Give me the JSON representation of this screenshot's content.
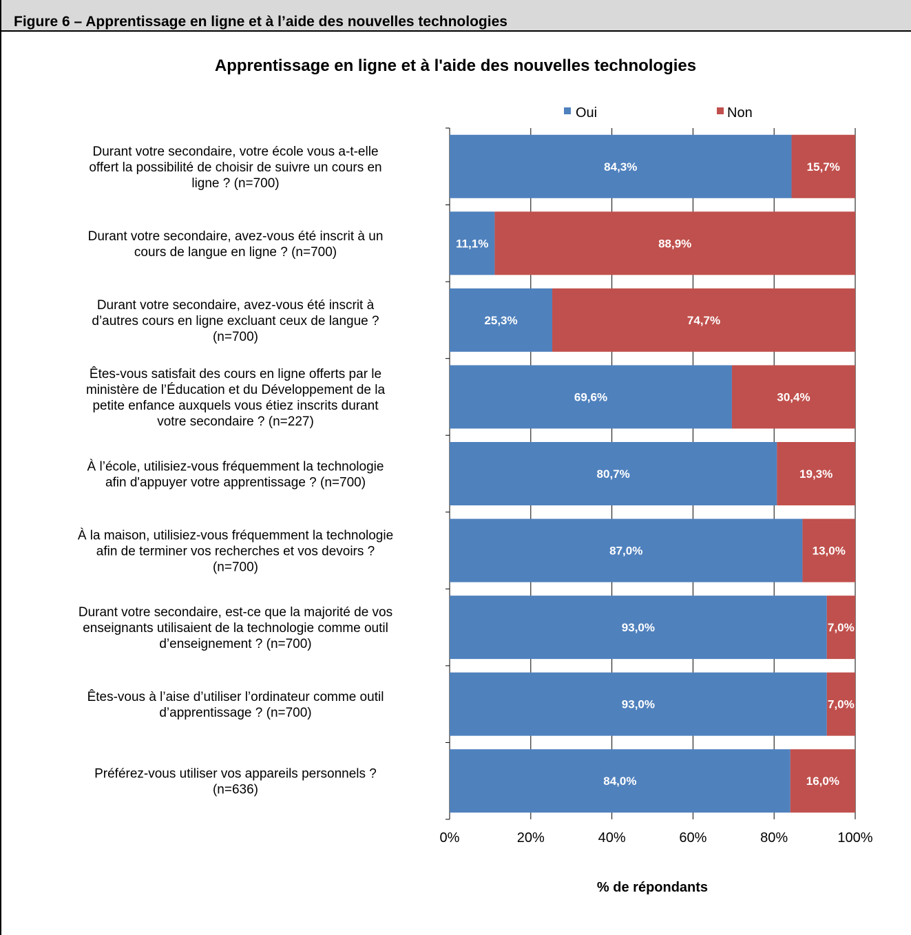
{
  "header": {
    "title": "Figure 6 – Apprentissage en ligne et à l’aide des nouvelles technologies"
  },
  "chart_data": {
    "type": "bar",
    "orientation": "horizontal",
    "stacked": true,
    "title": "Apprentissage en ligne et à l'aide des nouvelles technologies",
    "xlabel": "% de répondants",
    "ylabel": "",
    "xlim": [
      0,
      100
    ],
    "x_ticks": [
      "0%",
      "20%",
      "40%",
      "60%",
      "80%",
      "100%"
    ],
    "legend_position": "top",
    "categories": [
      [
        "Durant votre secondaire, votre école vous a-t-elle",
        "offert la possibilité de choisir de suivre un cours en",
        "ligne ? (n=700)"
      ],
      [
        "Durant votre secondaire, avez-vous été inscrit à un",
        "cours de langue en ligne ? (n=700)"
      ],
      [
        "Durant votre secondaire, avez-vous été inscrit à",
        "d’autres cours en ligne excluant ceux de langue ?",
        "(n=700)"
      ],
      [
        "Êtes-vous satisfait des cours en ligne offerts par le",
        "ministère de l’Éducation et du Développement de la",
        "petite enfance auxquels vous étiez inscrits durant",
        "votre secondaire ? (n=227)"
      ],
      [
        "À l’école, utilisiez-vous fréquemment la technologie",
        "afin d'appuyer votre apprentissage ? (n=700)"
      ],
      [
        "À la maison, utilisiez-vous fréquemment la technologie",
        "afin de terminer vos recherches et vos devoirs ?",
        "(n=700)"
      ],
      [
        "Durant votre secondaire, est-ce que la majorité de vos",
        "enseignants utilisaient de la technologie comme outil",
        "d’enseignement ? (n=700)"
      ],
      [
        "Êtes-vous à l’aise d’utiliser l’ordinateur comme outil",
        "d’apprentissage ? (n=700)"
      ],
      [
        "Préférez-vous utiliser vos appareils personnels ?",
        "(n=636)"
      ]
    ],
    "series": [
      {
        "name": "Oui",
        "color": "#4f81bd",
        "values": [
          84.3,
          11.1,
          25.3,
          69.6,
          80.7,
          87.0,
          93.0,
          93.0,
          84.0
        ],
        "labels": [
          "84,3%",
          "11,1%",
          "25,3%",
          "69,6%",
          "80,7%",
          "87,0%",
          "93,0%",
          "93,0%",
          "84,0%"
        ]
      },
      {
        "name": "Non",
        "color": "#c0504d",
        "values": [
          15.7,
          88.9,
          74.7,
          30.4,
          19.3,
          13.0,
          7.0,
          7.0,
          16.0
        ],
        "labels": [
          "15,7%",
          "88,9%",
          "74,7%",
          "30,4%",
          "19,3%",
          "13,0%",
          "7,0%",
          "7,0%",
          "16,0%"
        ]
      }
    ],
    "grid": true
  }
}
